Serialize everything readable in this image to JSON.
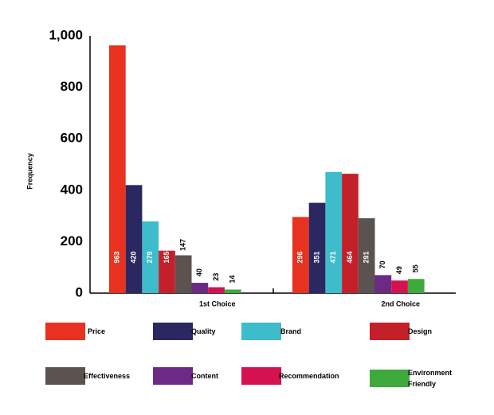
{
  "chart_data": {
    "type": "bar",
    "ylabel": "Frequency",
    "categories": [
      "1st Choice",
      "2nd Choice"
    ],
    "series": [
      {
        "name": "Price",
        "color": "#e8311e",
        "values": [
          963,
          296
        ]
      },
      {
        "name": "Quality",
        "color": "#2b2760",
        "values": [
          420,
          351
        ]
      },
      {
        "name": "Brand",
        "color": "#3fbccb",
        "values": [
          279,
          471
        ]
      },
      {
        "name": "Design",
        "color": "#c4202a",
        "values": [
          165,
          464
        ]
      },
      {
        "name": "Effectiveness",
        "color": "#5a534f",
        "values": [
          147,
          291
        ]
      },
      {
        "name": "Content",
        "color": "#6a2a86",
        "values": [
          40,
          70
        ]
      },
      {
        "name": "Recommendation",
        "color": "#d4124f",
        "values": [
          23,
          49
        ]
      },
      {
        "name": "Environment Friendly",
        "color": "#3daa3b",
        "values": [
          14,
          55
        ]
      }
    ],
    "ylim": [
      0,
      1000
    ],
    "yticks": [
      0,
      200,
      400,
      600,
      800,
      {
        "value": 1000,
        "label": "1,000"
      }
    ]
  }
}
